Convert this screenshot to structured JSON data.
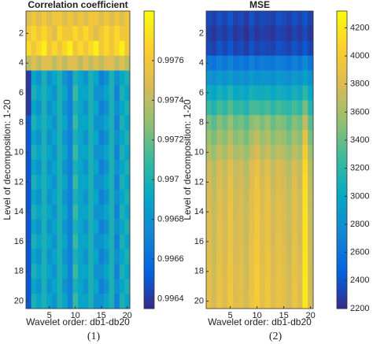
{
  "chart_data": [
    {
      "type": "heatmap",
      "title": "Correlation coefficient",
      "xlabel": "Wavelet order: db1-db20",
      "ylabel": "Level of decomposition: 1-20",
      "caption": "(1)",
      "colormap": "parula",
      "xlim": [
        0.5,
        20.5
      ],
      "ylim": [
        0.5,
        20.5
      ],
      "y_reversed": true,
      "xticks": [
        5,
        10,
        15,
        20
      ],
      "yticks": [
        2,
        4,
        6,
        8,
        10,
        12,
        14,
        16,
        18,
        20
      ],
      "clim": [
        0.99635,
        0.99785
      ],
      "cticks": [
        0.9964,
        0.9966,
        0.9968,
        0.997,
        0.9972,
        0.9974,
        0.9976
      ],
      "values": [
        [
          0.9975,
          0.9976,
          0.9975,
          0.9976,
          0.9975,
          0.9976,
          0.9976,
          0.9975,
          0.9976,
          0.9975,
          0.9976,
          0.9975,
          0.9976,
          0.9976,
          0.9975,
          0.9976,
          0.9975,
          0.9976,
          0.9975,
          0.9976
        ],
        [
          0.9976,
          0.9977,
          0.9976,
          0.9977,
          0.9976,
          0.9975,
          0.9977,
          0.9976,
          0.9976,
          0.9977,
          0.9976,
          0.9977,
          0.9976,
          0.9975,
          0.9976,
          0.9977,
          0.9976,
          0.9977,
          0.9976,
          0.9976
        ],
        [
          0.9977,
          0.9976,
          0.9977,
          0.9978,
          0.9976,
          0.9977,
          0.9976,
          0.9977,
          0.9978,
          0.9976,
          0.9977,
          0.9976,
          0.9977,
          0.9978,
          0.9976,
          0.9977,
          0.9976,
          0.9977,
          0.9978,
          0.9976
        ],
        [
          0.9974,
          0.9975,
          0.9974,
          0.9975,
          0.9975,
          0.9974,
          0.9975,
          0.9974,
          0.9975,
          0.9975,
          0.9974,
          0.9975,
          0.9974,
          0.9975,
          0.9974,
          0.9975,
          0.9975,
          0.9974,
          0.9975,
          0.9974
        ],
        [
          0.9964,
          0.9969,
          0.9968,
          0.997,
          0.9968,
          0.9969,
          0.997,
          0.9968,
          0.9967,
          0.997,
          0.9969,
          0.9968,
          0.997,
          0.9969,
          0.9967,
          0.9968,
          0.997,
          0.9968,
          0.9969,
          0.997
        ],
        [
          0.9964,
          0.997,
          0.9969,
          0.997,
          0.9969,
          0.9968,
          0.997,
          0.9969,
          0.9967,
          0.9971,
          0.9969,
          0.9969,
          0.997,
          0.9968,
          0.9968,
          0.9969,
          0.997,
          0.9967,
          0.997,
          0.9969
        ],
        [
          0.9964,
          0.9969,
          0.9968,
          0.997,
          0.9968,
          0.9969,
          0.997,
          0.9968,
          0.9967,
          0.997,
          0.9969,
          0.9968,
          0.997,
          0.9969,
          0.9967,
          0.9968,
          0.997,
          0.9968,
          0.9969,
          0.997
        ],
        [
          0.9965,
          0.997,
          0.9969,
          0.997,
          0.9969,
          0.9968,
          0.997,
          0.9969,
          0.9967,
          0.9971,
          0.9969,
          0.9969,
          0.997,
          0.9968,
          0.9968,
          0.9969,
          0.997,
          0.9967,
          0.997,
          0.9969
        ],
        [
          0.9965,
          0.9969,
          0.9968,
          0.997,
          0.9968,
          0.9969,
          0.997,
          0.9968,
          0.9967,
          0.997,
          0.9969,
          0.9968,
          0.997,
          0.9969,
          0.9967,
          0.9968,
          0.997,
          0.9968,
          0.9969,
          0.997
        ],
        [
          0.9965,
          0.997,
          0.9969,
          0.997,
          0.9969,
          0.9968,
          0.997,
          0.9969,
          0.9967,
          0.9971,
          0.9969,
          0.9969,
          0.997,
          0.9968,
          0.9968,
          0.9969,
          0.997,
          0.9967,
          0.997,
          0.9969
        ],
        [
          0.9965,
          0.9969,
          0.9968,
          0.997,
          0.9968,
          0.9969,
          0.997,
          0.9968,
          0.9967,
          0.997,
          0.9969,
          0.9968,
          0.997,
          0.9969,
          0.9967,
          0.9968,
          0.997,
          0.9968,
          0.9969,
          0.997
        ],
        [
          0.9965,
          0.997,
          0.9969,
          0.997,
          0.9969,
          0.9968,
          0.997,
          0.9969,
          0.9967,
          0.9971,
          0.9969,
          0.9969,
          0.997,
          0.9968,
          0.9968,
          0.9969,
          0.997,
          0.9967,
          0.997,
          0.9969
        ],
        [
          0.9965,
          0.9969,
          0.9968,
          0.997,
          0.9968,
          0.9969,
          0.997,
          0.9968,
          0.9967,
          0.997,
          0.9969,
          0.9968,
          0.997,
          0.9969,
          0.9967,
          0.9968,
          0.997,
          0.9968,
          0.9969,
          0.997
        ],
        [
          0.9965,
          0.997,
          0.9969,
          0.997,
          0.9969,
          0.9968,
          0.997,
          0.9969,
          0.9967,
          0.9971,
          0.9969,
          0.9969,
          0.997,
          0.9968,
          0.9968,
          0.9969,
          0.997,
          0.9967,
          0.997,
          0.9969
        ],
        [
          0.9965,
          0.9969,
          0.9968,
          0.997,
          0.9968,
          0.9969,
          0.997,
          0.9968,
          0.9967,
          0.997,
          0.9969,
          0.9968,
          0.997,
          0.9969,
          0.9967,
          0.9968,
          0.997,
          0.9968,
          0.9969,
          0.997
        ],
        [
          0.9965,
          0.997,
          0.9969,
          0.997,
          0.9969,
          0.9968,
          0.997,
          0.9969,
          0.9967,
          0.9971,
          0.9969,
          0.9969,
          0.997,
          0.9968,
          0.9968,
          0.9969,
          0.997,
          0.9967,
          0.997,
          0.9969
        ],
        [
          0.9965,
          0.9969,
          0.9968,
          0.997,
          0.9968,
          0.9969,
          0.997,
          0.9968,
          0.9967,
          0.997,
          0.9969,
          0.9968,
          0.997,
          0.9969,
          0.9967,
          0.9968,
          0.997,
          0.9968,
          0.9969,
          0.997
        ],
        [
          0.9965,
          0.997,
          0.9969,
          0.997,
          0.9969,
          0.9968,
          0.997,
          0.9969,
          0.9967,
          0.9971,
          0.9969,
          0.9969,
          0.997,
          0.9968,
          0.9968,
          0.9969,
          0.997,
          0.9967,
          0.997,
          0.9969
        ],
        [
          0.9965,
          0.9969,
          0.9968,
          0.997,
          0.9968,
          0.9969,
          0.997,
          0.9968,
          0.9967,
          0.997,
          0.9969,
          0.9968,
          0.997,
          0.9969,
          0.9967,
          0.9968,
          0.997,
          0.9968,
          0.9969,
          0.997
        ],
        [
          0.9965,
          0.997,
          0.9969,
          0.997,
          0.9969,
          0.9968,
          0.997,
          0.9969,
          0.9967,
          0.9971,
          0.9969,
          0.9969,
          0.997,
          0.9968,
          0.9968,
          0.9969,
          0.997,
          0.9967,
          0.997,
          0.9969
        ]
      ]
    },
    {
      "type": "heatmap",
      "title": "MSE",
      "xlabel": "Wavelet order: db1-db20",
      "ylabel": "Level of decomposition: 1-20",
      "caption": "(2)",
      "colormap": "parula",
      "xlim": [
        0.5,
        20.5
      ],
      "ylim": [
        0.5,
        20.5
      ],
      "y_reversed": true,
      "xticks": [
        5,
        10,
        15,
        20
      ],
      "yticks": [
        2,
        4,
        6,
        8,
        10,
        12,
        14,
        16,
        18,
        20
      ],
      "clim": [
        2200,
        4320
      ],
      "cticks": [
        2200,
        2400,
        2600,
        2800,
        3000,
        3200,
        3400,
        3600,
        3800,
        4000,
        4200
      ],
      "values": [
        [
          2350,
          2300,
          2380,
          2320,
          2400,
          2300,
          2350,
          2280,
          2380,
          2300,
          2350,
          2320,
          2300,
          2380,
          2350,
          2300,
          2380,
          2320,
          2400,
          2300
        ],
        [
          2300,
          2250,
          2320,
          2280,
          2350,
          2250,
          2300,
          2230,
          2320,
          2250,
          2300,
          2270,
          2250,
          2320,
          2300,
          2250,
          2320,
          2270,
          2350,
          2250
        ],
        [
          2350,
          2300,
          2400,
          2330,
          2420,
          2310,
          2360,
          2290,
          2390,
          2310,
          2360,
          2330,
          2310,
          2390,
          2360,
          2310,
          2390,
          2330,
          2420,
          2310
        ],
        [
          2650,
          2600,
          2700,
          2620,
          2720,
          2600,
          2650,
          2580,
          2700,
          2620,
          2660,
          2640,
          2610,
          2690,
          2650,
          2600,
          2700,
          2630,
          2750,
          2600
        ],
        [
          2850,
          2800,
          2900,
          2820,
          2920,
          2800,
          2850,
          2780,
          2900,
          2820,
          2860,
          2840,
          2810,
          2890,
          2850,
          2800,
          2900,
          2830,
          2950,
          2800
        ],
        [
          3050,
          2980,
          3100,
          3020,
          3150,
          3000,
          3050,
          2980,
          3100,
          3050,
          3060,
          3080,
          3010,
          3090,
          3050,
          3000,
          3100,
          3030,
          3200,
          3000
        ],
        [
          3250,
          3150,
          3300,
          3200,
          3350,
          3200,
          3250,
          3150,
          3300,
          3300,
          3250,
          3300,
          3200,
          3300,
          3250,
          3200,
          3300,
          3220,
          3450,
          3150
        ],
        [
          3450,
          3350,
          3500,
          3400,
          3550,
          3400,
          3450,
          3350,
          3500,
          3550,
          3450,
          3550,
          3400,
          3500,
          3450,
          3350,
          3500,
          3420,
          3700,
          3350
        ],
        [
          3550,
          3450,
          3600,
          3500,
          3650,
          3500,
          3550,
          3450,
          3600,
          3700,
          3550,
          3650,
          3500,
          3600,
          3550,
          3450,
          3600,
          3500,
          3900,
          3450
        ],
        [
          3650,
          3550,
          3700,
          3600,
          3750,
          3600,
          3650,
          3550,
          3700,
          3800,
          3650,
          3750,
          3600,
          3700,
          3650,
          3550,
          3700,
          3600,
          4000,
          3550
        ],
        [
          3750,
          3650,
          3800,
          3700,
          3850,
          3700,
          3750,
          3650,
          3800,
          3900,
          3750,
          3850,
          3700,
          3800,
          3750,
          3650,
          3800,
          3700,
          4100,
          3650
        ],
        [
          3780,
          3680,
          3830,
          3730,
          3880,
          3730,
          3780,
          3680,
          3830,
          3930,
          3780,
          3880,
          3730,
          3830,
          3780,
          3680,
          3830,
          3730,
          4130,
          3680
        ],
        [
          3800,
          3700,
          3850,
          3750,
          3900,
          3750,
          3800,
          3700,
          3850,
          3950,
          3800,
          3900,
          3750,
          3850,
          3800,
          3700,
          3850,
          3750,
          4150,
          3700
        ],
        [
          3810,
          3710,
          3860,
          3760,
          3910,
          3760,
          3810,
          3710,
          3860,
          3960,
          3810,
          3910,
          3760,
          3860,
          3810,
          3710,
          3860,
          3760,
          4160,
          3710
        ],
        [
          3820,
          3720,
          3870,
          3770,
          3920,
          3770,
          3820,
          3720,
          3870,
          3970,
          3820,
          3920,
          3770,
          3870,
          3820,
          3720,
          3870,
          3770,
          4170,
          3720
        ],
        [
          3830,
          3730,
          3880,
          3780,
          3930,
          3780,
          3830,
          3730,
          3880,
          3980,
          3830,
          3930,
          3780,
          3880,
          3830,
          3730,
          3880,
          3780,
          4180,
          3730
        ],
        [
          3840,
          3740,
          3890,
          3790,
          3940,
          3790,
          3840,
          3740,
          3890,
          3990,
          3840,
          3940,
          3790,
          3890,
          3840,
          3740,
          3890,
          3790,
          4190,
          3740
        ],
        [
          3850,
          3750,
          3900,
          3800,
          3950,
          3800,
          3850,
          3750,
          3900,
          4000,
          3850,
          3950,
          3800,
          3900,
          3850,
          3750,
          3900,
          3800,
          4200,
          3750
        ],
        [
          3860,
          3760,
          3910,
          3810,
          3960,
          3810,
          3860,
          3760,
          3910,
          4010,
          3860,
          3960,
          3810,
          3910,
          3860,
          3760,
          3910,
          3810,
          4210,
          3760
        ],
        [
          3870,
          3770,
          3920,
          3820,
          3970,
          3820,
          3870,
          3770,
          3920,
          4020,
          3870,
          3970,
          3820,
          3920,
          3870,
          3770,
          3920,
          3820,
          4220,
          3770
        ]
      ]
    }
  ]
}
